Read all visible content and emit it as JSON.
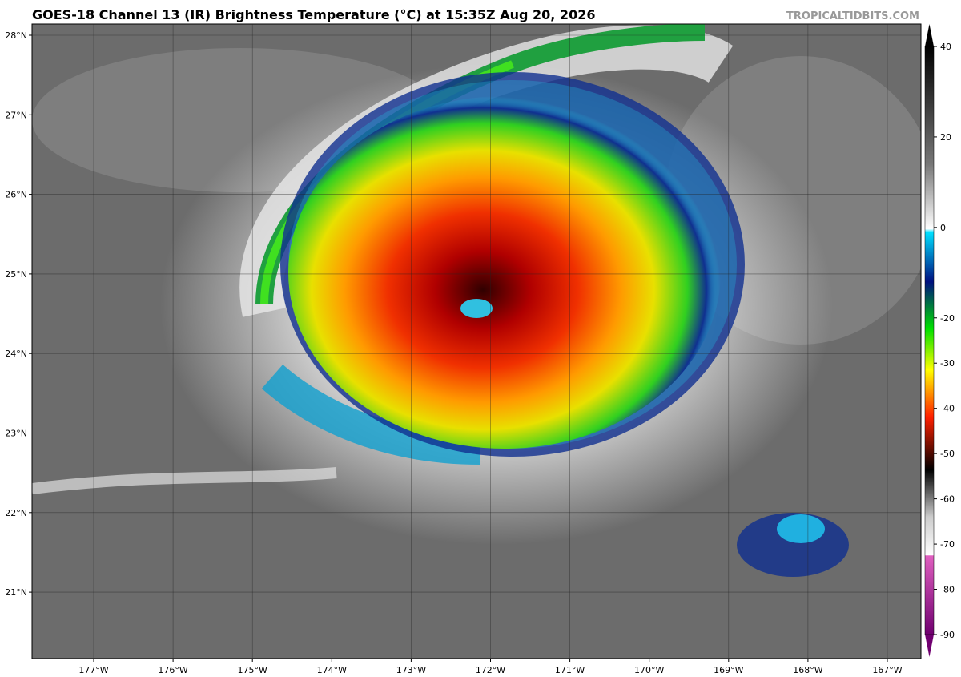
{
  "header": {
    "title": "GOES-18 Channel 13 (IR) Brightness Temperature (°C) at 15:35Z Aug 20, 2026",
    "credit": "TROPICALTIDBITS.COM"
  },
  "map": {
    "lat_labels": [
      "28°N",
      "27°N",
      "26°N",
      "25°N",
      "24°N",
      "23°N",
      "22°N",
      "21°N"
    ],
    "lon_labels": [
      "177°W",
      "176°W",
      "175°W",
      "174°W",
      "173°W",
      "172°W",
      "171°W",
      "170°W",
      "169°W",
      "168°W",
      "167°W"
    ]
  },
  "colorbar": {
    "ticks": [
      40,
      20,
      0,
      -20,
      -30,
      -40,
      -50,
      -60,
      -70,
      -80,
      -90
    ]
  }
}
